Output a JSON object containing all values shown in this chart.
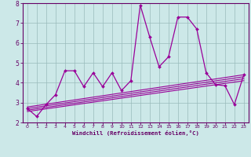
{
  "x": [
    0,
    1,
    2,
    3,
    4,
    5,
    6,
    7,
    8,
    9,
    10,
    11,
    12,
    13,
    14,
    15,
    16,
    17,
    18,
    19,
    20,
    21,
    22,
    23
  ],
  "y_main": [
    2.7,
    2.3,
    2.9,
    3.4,
    4.6,
    4.6,
    3.8,
    4.5,
    3.8,
    4.5,
    3.6,
    4.1,
    7.9,
    6.3,
    4.8,
    5.3,
    7.3,
    7.3,
    6.7,
    4.5,
    3.9,
    3.85,
    2.9,
    4.4
  ],
  "line_color": "#990099",
  "bg_color": "#cce8e8",
  "plot_bg": "#cce8e8",
  "grid_color": "#99bbbb",
  "axis_color": "#660066",
  "xlabel": "Windchill (Refroidissement éolien,°C)",
  "ylim": [
    2.0,
    8.0
  ],
  "xlim": [
    -0.5,
    23.5
  ],
  "yticks": [
    2,
    3,
    4,
    5,
    6,
    7,
    8
  ],
  "xticks": [
    0,
    1,
    2,
    3,
    4,
    5,
    6,
    7,
    8,
    9,
    10,
    11,
    12,
    13,
    14,
    15,
    16,
    17,
    18,
    19,
    20,
    21,
    22,
    23
  ],
  "trend_lines": [
    {
      "x0": 0,
      "y0": 2.55,
      "x1": 23,
      "y1": 4.1
    },
    {
      "x0": 0,
      "y0": 2.62,
      "x1": 23,
      "y1": 4.2
    },
    {
      "x0": 0,
      "y0": 2.7,
      "x1": 23,
      "y1": 4.3
    },
    {
      "x0": 0,
      "y0": 2.78,
      "x1": 23,
      "y1": 4.4
    }
  ]
}
